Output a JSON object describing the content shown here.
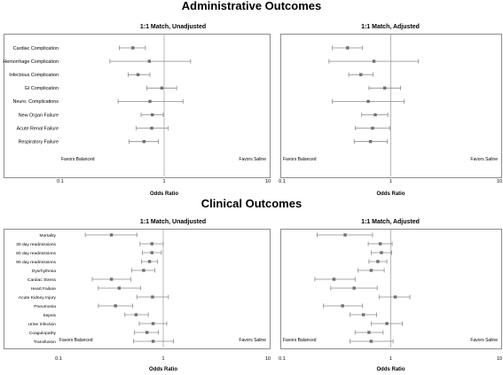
{
  "sections": [
    {
      "title": "Administrative Outcomes"
    },
    {
      "title": "Clinical Outcomes"
    }
  ],
  "colors": {
    "marker": "#707070",
    "whisker": "#8a8a8a",
    "frame": "#8c8c8c",
    "reference": "#a8a8a8"
  },
  "chart_data": [
    {
      "type": "forest",
      "title": "1:1 Match, Unadjusted",
      "xlabel": "Odds Ratio",
      "xscale": "log",
      "xlim": [
        0.1,
        10
      ],
      "xticks": [
        "0.1",
        "1",
        "10"
      ],
      "reference": 1,
      "left_note": "Favors Balanced",
      "right_note": "Favors Saline",
      "rows": [
        {
          "label": "Cardiac Complication",
          "or": 0.5,
          "lo": 0.37,
          "hi": 0.66
        },
        {
          "label": "Hemorrhage Complication",
          "or": 0.72,
          "lo": 0.3,
          "hi": 1.8
        },
        {
          "label": "Infectious Complication",
          "or": 0.56,
          "lo": 0.45,
          "hi": 0.73
        },
        {
          "label": "GI Complication",
          "or": 0.95,
          "lo": 0.68,
          "hi": 1.32
        },
        {
          "label": "Neuro. Complications",
          "or": 0.73,
          "lo": 0.36,
          "hi": 1.52
        },
        {
          "label": "New Organ Failure",
          "or": 0.77,
          "lo": 0.6,
          "hi": 0.98
        },
        {
          "label": "Acute Renal Failure",
          "or": 0.76,
          "lo": 0.54,
          "hi": 1.09
        },
        {
          "label": "Respiratory Failure",
          "or": 0.64,
          "lo": 0.46,
          "hi": 0.88
        }
      ]
    },
    {
      "type": "forest",
      "title": "1:1 Match, Adjusted",
      "xlabel": "Odds Ratio",
      "xscale": "log",
      "xlim": [
        0.1,
        10
      ],
      "xticks": [
        "0.1",
        "1",
        "10"
      ],
      "reference": 1,
      "left_note": "Favors Balanced",
      "right_note": "Favors Saline",
      "rows": [
        {
          "label": "Cardiac Complication",
          "or": 0.4,
          "lo": 0.29,
          "hi": 0.55
        },
        {
          "label": "Hemorrhage Complication",
          "or": 0.7,
          "lo": 0.27,
          "hi": 1.8
        },
        {
          "label": "Infectious Complication",
          "or": 0.53,
          "lo": 0.41,
          "hi": 0.69
        },
        {
          "label": "GI Complication",
          "or": 0.88,
          "lo": 0.63,
          "hi": 1.23
        },
        {
          "label": "Neuro. Complications",
          "or": 0.62,
          "lo": 0.29,
          "hi": 1.33
        },
        {
          "label": "New Organ Failure",
          "or": 0.72,
          "lo": 0.54,
          "hi": 0.94
        },
        {
          "label": "Acute Renal Failure",
          "or": 0.68,
          "lo": 0.47,
          "hi": 0.98
        },
        {
          "label": "Respiratory Failure",
          "or": 0.65,
          "lo": 0.46,
          "hi": 0.93
        }
      ]
    },
    {
      "type": "forest",
      "title": "1:1 Match, Unadjusted",
      "xlabel": "Odds Ratio",
      "xscale": "log",
      "xlim": [
        0.1,
        10
      ],
      "xticks": [
        "0.1",
        "1",
        "10"
      ],
      "reference": 1,
      "left_note": "Favors Balanced",
      "right_note": "Favors Saline",
      "rows": [
        {
          "label": "Mortality",
          "or": 0.32,
          "lo": 0.18,
          "hi": 0.56
        },
        {
          "label": "30 day readmissions",
          "or": 0.78,
          "lo": 0.6,
          "hi": 1.0
        },
        {
          "label": "60 day readmissions",
          "or": 0.78,
          "lo": 0.63,
          "hi": 0.96
        },
        {
          "label": "90 day readmissions",
          "or": 0.74,
          "lo": 0.62,
          "hi": 0.88
        },
        {
          "label": "Dysrhythmia",
          "or": 0.65,
          "lo": 0.5,
          "hi": 0.83
        },
        {
          "label": "Cardiac Stress",
          "or": 0.32,
          "lo": 0.21,
          "hi": 0.49
        },
        {
          "label": "Heart Failure",
          "or": 0.38,
          "lo": 0.24,
          "hi": 0.61
        },
        {
          "label": "Acute Kidney Injury",
          "or": 0.79,
          "lo": 0.56,
          "hi": 1.12
        },
        {
          "label": "Pneumonia",
          "or": 0.35,
          "lo": 0.24,
          "hi": 0.51
        },
        {
          "label": "Sepsis",
          "or": 0.55,
          "lo": 0.43,
          "hi": 0.72
        },
        {
          "label": "Urine Infection",
          "or": 0.8,
          "lo": 0.59,
          "hi": 1.08
        },
        {
          "label": "Coagulopathy",
          "or": 0.7,
          "lo": 0.53,
          "hi": 0.9
        },
        {
          "label": "Transfusion",
          "or": 0.8,
          "lo": 0.52,
          "hi": 1.25
        }
      ]
    },
    {
      "type": "forest",
      "title": "1:1 Match, Adjusted",
      "xlabel": "Odds Ratio",
      "xscale": "log",
      "xlim": [
        0.1,
        10
      ],
      "xticks": [
        "0.1",
        "1",
        "10"
      ],
      "reference": 1,
      "left_note": "Favors Balanced",
      "right_note": "Favors Saline",
      "rows": [
        {
          "label": "Mortality",
          "or": 0.38,
          "lo": 0.21,
          "hi": 0.68
        },
        {
          "label": "30 day readmissions",
          "or": 0.8,
          "lo": 0.62,
          "hi": 1.03
        },
        {
          "label": "60 day readmissions",
          "or": 0.82,
          "lo": 0.66,
          "hi": 1.02
        },
        {
          "label": "90 day readmissions",
          "or": 0.76,
          "lo": 0.63,
          "hi": 0.92
        },
        {
          "label": "Dysrhythmia",
          "or": 0.66,
          "lo": 0.5,
          "hi": 0.87
        },
        {
          "label": "Cardiac Stress",
          "or": 0.3,
          "lo": 0.2,
          "hi": 0.47
        },
        {
          "label": "Heart Failure",
          "or": 0.46,
          "lo": 0.28,
          "hi": 0.75
        },
        {
          "label": "Acute Kidney Injury",
          "or": 1.1,
          "lo": 0.78,
          "hi": 1.5
        },
        {
          "label": "Pneumonia",
          "or": 0.36,
          "lo": 0.24,
          "hi": 0.55
        },
        {
          "label": "Sepsis",
          "or": 0.56,
          "lo": 0.42,
          "hi": 0.74
        },
        {
          "label": "Urine Infection",
          "or": 0.92,
          "lo": 0.66,
          "hi": 1.28
        },
        {
          "label": "Coagulopathy",
          "or": 0.63,
          "lo": 0.47,
          "hi": 0.85
        },
        {
          "label": "Transfusion",
          "or": 0.66,
          "lo": 0.42,
          "hi": 1.05
        }
      ]
    }
  ]
}
